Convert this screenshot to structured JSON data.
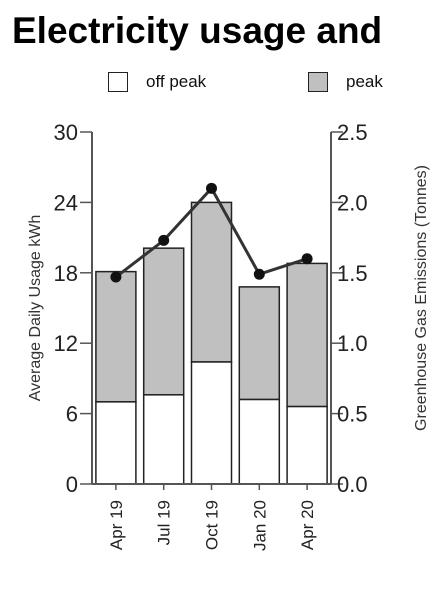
{
  "chart_data": {
    "type": "bar",
    "title": "Electricity usage and",
    "categories": [
      "Apr 19",
      "Jul 19",
      "Oct 19",
      "Jan 20",
      "Apr 20"
    ],
    "series": [
      {
        "name": "off peak",
        "type": "stacked-bar",
        "axis": "left",
        "color": "#ffffff",
        "values": [
          7.0,
          7.6,
          10.4,
          7.2,
          6.6
        ]
      },
      {
        "name": "peak",
        "type": "stacked-bar",
        "axis": "left",
        "color": "#c0c0c0",
        "values": [
          11.1,
          12.5,
          13.6,
          9.6,
          12.2
        ]
      },
      {
        "type": "line",
        "axis": "right",
        "color": "#333333",
        "values": [
          1.47,
          1.73,
          2.1,
          1.49,
          1.6
        ]
      }
    ],
    "ylabel": "Average Daily Usage kWh",
    "ylim": [
      0,
      30
    ],
    "yticks": [
      "0",
      "6",
      "12",
      "18",
      "24",
      "30"
    ],
    "y2label": "Greenhouse Gas Emissions (Tonnes)",
    "y2lim": [
      0,
      2.5
    ],
    "y2ticks": [
      "0.0",
      "0.5",
      "1.0",
      "1.5",
      "2.0",
      "2.5"
    ],
    "legend": {
      "placement": "top",
      "items": [
        "off peak",
        "peak"
      ]
    },
    "grid": false
  }
}
